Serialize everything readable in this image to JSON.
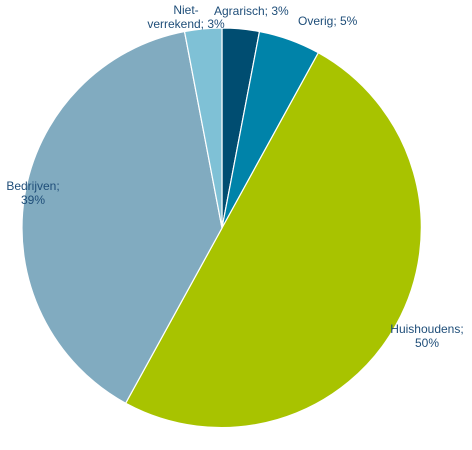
{
  "chart_data": {
    "type": "pie",
    "slices": [
      {
        "label": "Agrarisch",
        "value": 3,
        "label_text": [
          "Agrarisch; 3%"
        ],
        "color": "#004d71"
      },
      {
        "label": "Overig",
        "value": 5,
        "label_text": [
          "Overig; 5%"
        ],
        "color": "#0083a9"
      },
      {
        "label": "Huishoudens",
        "value": 50,
        "label_text": [
          "Huishoudens;",
          "50%"
        ],
        "color": "#a8c300"
      },
      {
        "label": "Bedrijven",
        "value": 39,
        "label_text": [
          "Bedrijven;",
          "39%"
        ],
        "color": "#81abc0"
      },
      {
        "label": "Niet-verrekend",
        "value": 3,
        "label_text": [
          "Niet-",
          "verrekend; 3%"
        ],
        "color": "#7fc1d6"
      }
    ]
  }
}
